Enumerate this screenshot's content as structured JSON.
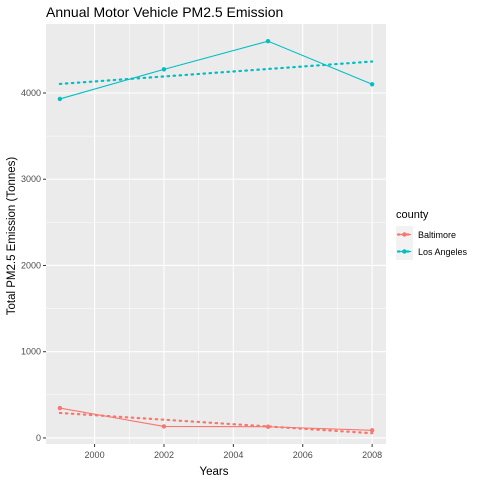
{
  "chart_data": {
    "type": "line",
    "title": "Annual Motor Vehicle PM2.5 Emission",
    "xlabel": "Years",
    "ylabel": "Total PM2.5 Emission (Tonnes)",
    "xlim": [
      1998.6,
      2008.4
    ],
    "ylim": [
      -70,
      4800
    ],
    "x_ticks": [
      2000,
      2002,
      2004,
      2006,
      2008
    ],
    "y_ticks": [
      0,
      1000,
      2000,
      3000,
      4000
    ],
    "grid": true,
    "legend": {
      "title": "county",
      "position": "right"
    },
    "series": [
      {
        "name": "Baltimore",
        "color": "#F8766D",
        "x": [
          1999,
          2002,
          2005,
          2008
        ],
        "values": [
          347,
          134,
          130,
          89
        ],
        "trend": {
          "x": [
            1999,
            2008
          ],
          "values": [
            290,
            55
          ]
        }
      },
      {
        "name": "Los Angeles",
        "color": "#00BFC4",
        "x": [
          1999,
          2002,
          2005,
          2008
        ],
        "values": [
          3931,
          4274,
          4601,
          4101
        ],
        "trend": {
          "x": [
            1999,
            2008
          ],
          "values": [
            4105,
            4365
          ]
        }
      }
    ]
  }
}
